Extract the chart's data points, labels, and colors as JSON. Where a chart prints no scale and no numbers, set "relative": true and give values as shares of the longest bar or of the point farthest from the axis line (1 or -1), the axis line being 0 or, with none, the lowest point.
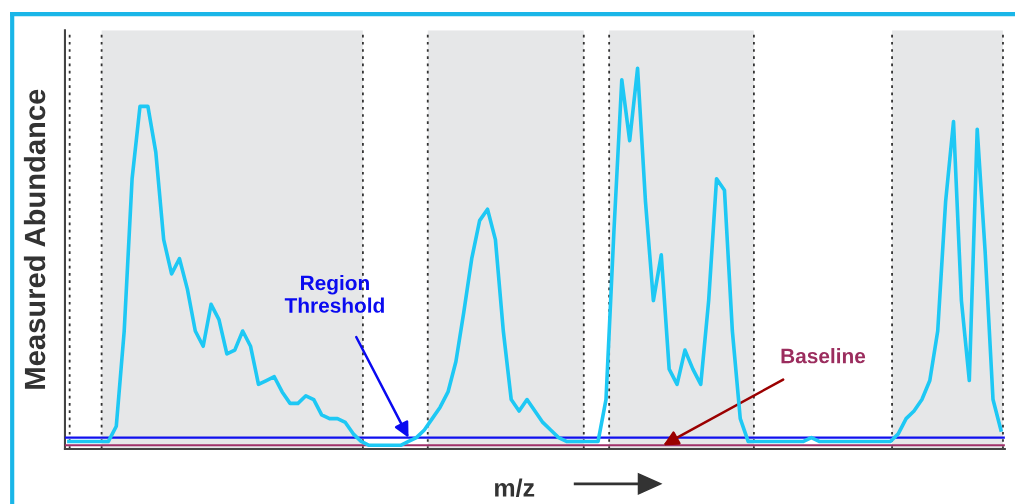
{
  "chart_data": {
    "type": "line",
    "relative": true,
    "xlabel": "m/z",
    "ylabel": "Measured Abundance",
    "categories": [
      null,
      null,
      null,
      null,
      null,
      null,
      null,
      null,
      null,
      null,
      null,
      null,
      null,
      null,
      null,
      null,
      null,
      null,
      null,
      null,
      null,
      null,
      null,
      null,
      null,
      null,
      null,
      null,
      null,
      null,
      null,
      null,
      null,
      null,
      null,
      null,
      null,
      null,
      null,
      null,
      null,
      null,
      null,
      null,
      null,
      null,
      null,
      null,
      null,
      null,
      null,
      null,
      null,
      null,
      null,
      null,
      null,
      null,
      null,
      null,
      null,
      null,
      null,
      null,
      null,
      null,
      null,
      null,
      null,
      null,
      null,
      null,
      null,
      null,
      null,
      null,
      null,
      null,
      null,
      null,
      null,
      null,
      null,
      null,
      null,
      null,
      null,
      null,
      null,
      null,
      null,
      null,
      null,
      null,
      null,
      null,
      null,
      null,
      null,
      null,
      null,
      null,
      null,
      null,
      null,
      null,
      null,
      null,
      null,
      null,
      null,
      null,
      null,
      null,
      null,
      null,
      null,
      null,
      null
    ],
    "series": [
      {
        "color": "#1ec8f4",
        "values": [
          0.02,
          0.02,
          0.02,
          0.02,
          0.02,
          0.02,
          0.06,
          0.31,
          0.71,
          0.9,
          0.9,
          0.78,
          0.55,
          0.46,
          0.5,
          0.42,
          0.31,
          0.27,
          0.38,
          0.34,
          0.25,
          0.26,
          0.31,
          0.27,
          0.17,
          0.18,
          0.19,
          0.15,
          0.12,
          0.12,
          0.14,
          0.13,
          0.09,
          0.08,
          0.08,
          0.07,
          0.04,
          0.02,
          0.01,
          0.01,
          0.01,
          0.01,
          0.01,
          0.02,
          0.03,
          0.05,
          0.08,
          0.11,
          0.15,
          0.23,
          0.36,
          0.5,
          0.6,
          0.63,
          0.55,
          0.31,
          0.13,
          0.1,
          0.13,
          0.1,
          0.07,
          0.05,
          0.03,
          0.02,
          0.02,
          0.02,
          0.02,
          0.02,
          0.13,
          0.57,
          0.97,
          0.81,
          1.0,
          0.65,
          0.39,
          0.51,
          0.21,
          0.17,
          0.26,
          0.21,
          0.17,
          0.39,
          0.71,
          0.68,
          0.31,
          0.08,
          0.02,
          0.02,
          0.02,
          0.02,
          0.02,
          0.02,
          0.02,
          0.02,
          0.03,
          0.02,
          0.02,
          0.02,
          0.02,
          0.02,
          0.02,
          0.02,
          0.02,
          0.02,
          0.02,
          0.04,
          0.08,
          0.1,
          0.13,
          0.18,
          0.31,
          0.65,
          0.86,
          0.39,
          0.18,
          0.84,
          0.52,
          0.13,
          0.05
        ]
      }
    ],
    "ref_lines": [
      {
        "axis": "y",
        "value": 0.03,
        "label": "Region\nThreshold",
        "color": "#1010ee",
        "line_style": "solid"
      },
      {
        "axis": "y",
        "value": 0.01,
        "label": "Baseline",
        "color": "#a0306a",
        "line_style": "solid"
      }
    ],
    "legend": false,
    "marker": "none",
    "line_style": "solid"
  }
}
